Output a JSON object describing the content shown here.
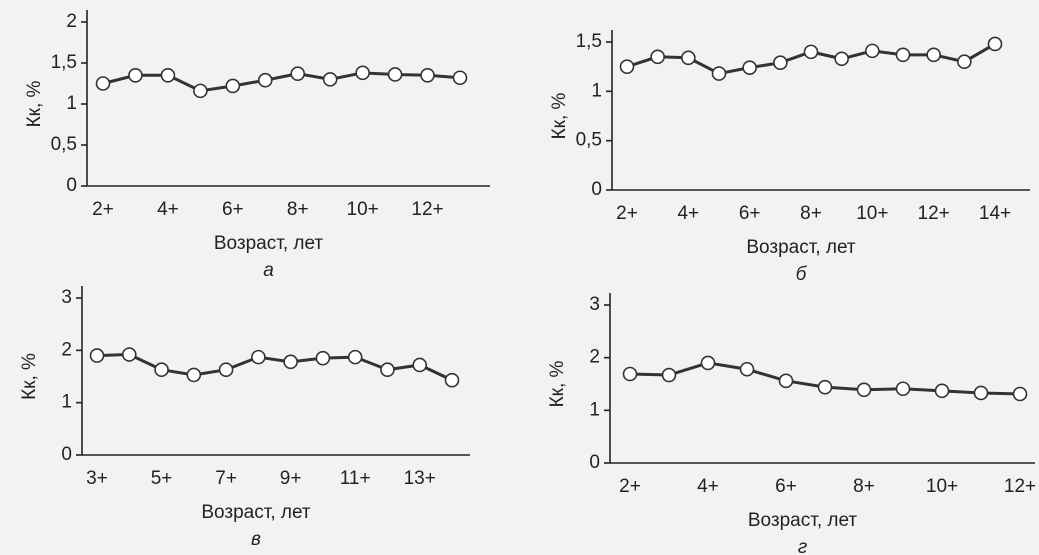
{
  "chart_data": [
    {
      "type": "line",
      "panel": "а",
      "ylabel": "Кк, %",
      "xlabel": "Возраст, лет",
      "categories": [
        "2+",
        null,
        "4+",
        null,
        "6+",
        null,
        "8+",
        null,
        "10+",
        null,
        "12+",
        null
      ],
      "values": [
        1.25,
        1.35,
        1.35,
        1.16,
        1.22,
        1.29,
        1.37,
        1.3,
        1.38,
        1.36,
        1.35,
        1.32
      ],
      "color": "#333333",
      "ylim": [
        0,
        2
      ],
      "yticks": [
        0,
        {
          "value": 0.5,
          "label": "0,5"
        },
        1,
        {
          "value": 1.5,
          "label": "1,5"
        },
        2
      ]
    },
    {
      "type": "line",
      "panel": "б",
      "ylabel": "Кк, %",
      "xlabel": "Возраст, лет",
      "categories": [
        "2+",
        null,
        "4+",
        null,
        "6+",
        null,
        "8+",
        null,
        "10+",
        null,
        "12+",
        null,
        "14+"
      ],
      "values": [
        1.25,
        1.35,
        1.34,
        1.18,
        1.24,
        1.29,
        1.4,
        1.33,
        1.41,
        1.37,
        1.37,
        1.3,
        1.48
      ],
      "color": "#333333",
      "ylim": [
        0,
        1.5
      ],
      "yticks": [
        0,
        {
          "value": 0.5,
          "label": "0,5"
        },
        1,
        {
          "value": 1.5,
          "label": "1,5"
        }
      ]
    },
    {
      "type": "line",
      "panel": "в",
      "ylabel": "Кк, %",
      "xlabel": "Возраст, лет",
      "categories": [
        "3+",
        null,
        "5+",
        null,
        "7+",
        null,
        "9+",
        null,
        "11+",
        null,
        "13+",
        null
      ],
      "values": [
        1.9,
        1.92,
        1.63,
        1.53,
        1.63,
        1.87,
        1.78,
        1.85,
        1.87,
        1.63,
        1.72,
        1.43
      ],
      "color": "#333333",
      "ylim": [
        0,
        3
      ],
      "yticks": [
        0,
        1,
        2,
        3
      ]
    },
    {
      "type": "line",
      "panel": "г",
      "ylabel": "Кк, %",
      "xlabel": "Возраст, лет",
      "categories": [
        "2+",
        null,
        "4+",
        null,
        "6+",
        null,
        "8+",
        null,
        "10+",
        null,
        "12+"
      ],
      "values": [
        1.69,
        1.67,
        1.9,
        1.78,
        1.56,
        1.44,
        1.39,
        1.41,
        1.37,
        1.33,
        1.31
      ],
      "color": "#333333",
      "ylim": [
        0,
        3
      ],
      "yticks": [
        0,
        1,
        2,
        3
      ]
    }
  ]
}
